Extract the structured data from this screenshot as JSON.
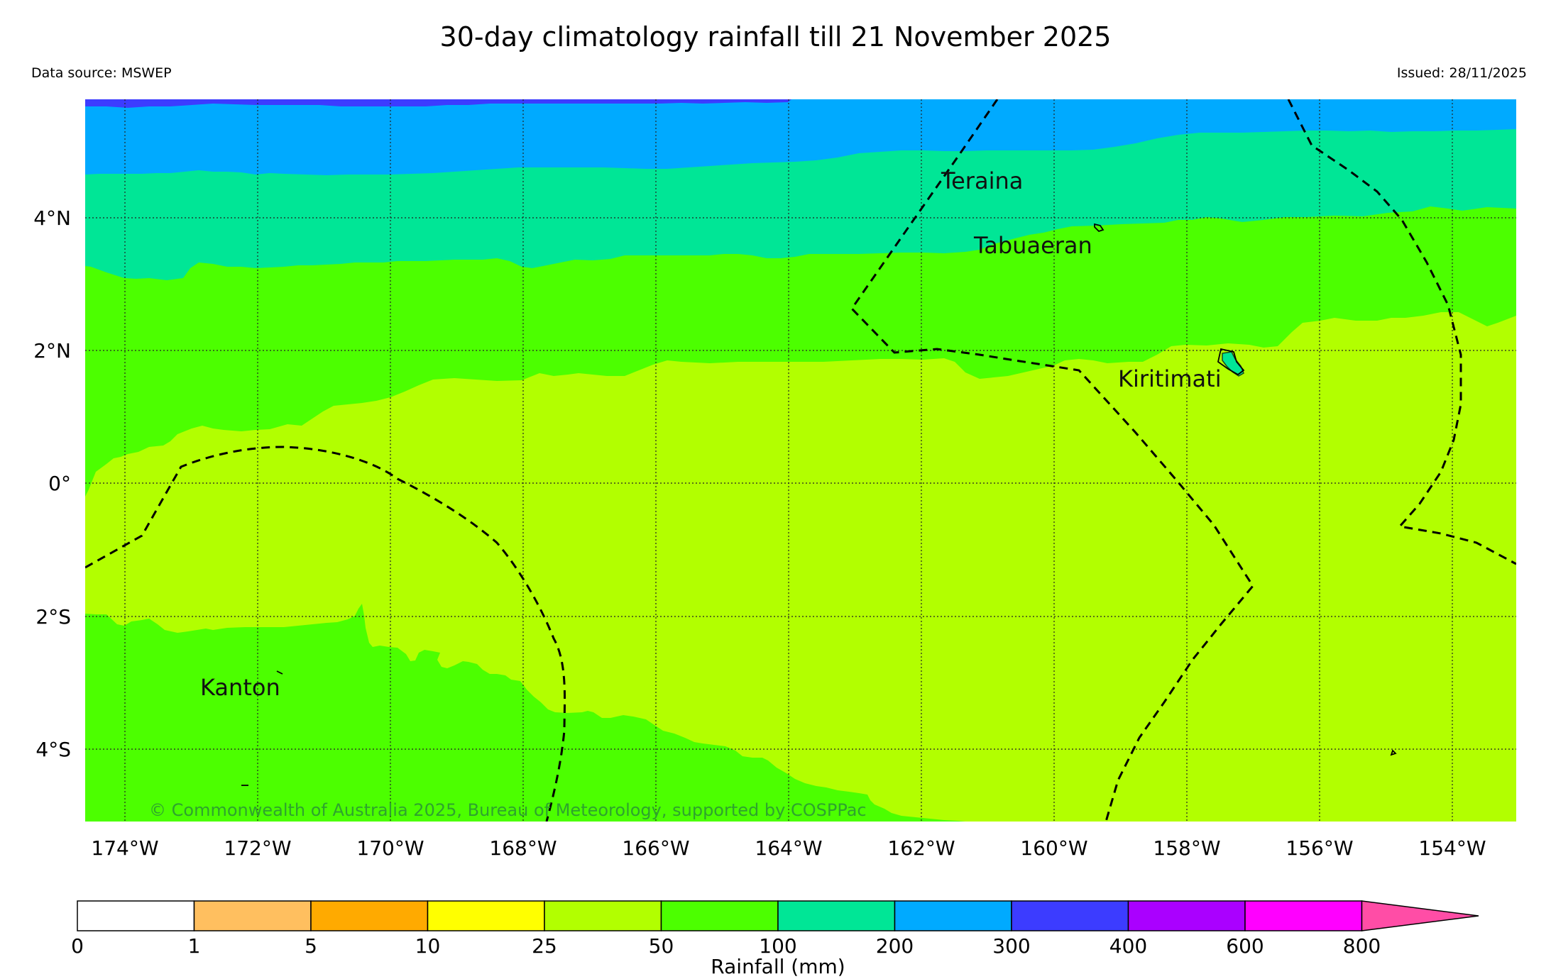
{
  "header": {
    "title": "30-day climatology rainfall till 21 November 2025",
    "source": "Data source: MSWEP",
    "issued": "Issued: 28/11/2025"
  },
  "map": {
    "lat_labels": [
      "4°N",
      "2°N",
      "0°",
      "2°S",
      "4°S"
    ],
    "lon_labels": [
      "174°W",
      "172°W",
      "170°W",
      "168°W",
      "166°W",
      "164°W",
      "162°W",
      "160°W",
      "158°W",
      "156°W",
      "154°W"
    ],
    "places": [
      {
        "name": "Teraina"
      },
      {
        "name": "Tabuaeran"
      },
      {
        "name": "Kiritimati"
      },
      {
        "name": "Kanton"
      }
    ],
    "copyright": "© Commonwealth of Australia 2025, Bureau of Meteorology, supported by COSPPac"
  },
  "legend": {
    "ticks": [
      "0",
      "1",
      "5",
      "10",
      "25",
      "50",
      "100",
      "200",
      "300",
      "400",
      "600",
      "800"
    ],
    "colors": [
      "#ffffff",
      "#ffbf5f",
      "#ffaa00",
      "#ffff00",
      "#b2ff00",
      "#4cff00",
      "#00e696",
      "#00aaff",
      "#3c3cff",
      "#aa00ff",
      "#ff00ff",
      "#ff4da6"
    ],
    "label": "Rainfall (mm)"
  }
}
